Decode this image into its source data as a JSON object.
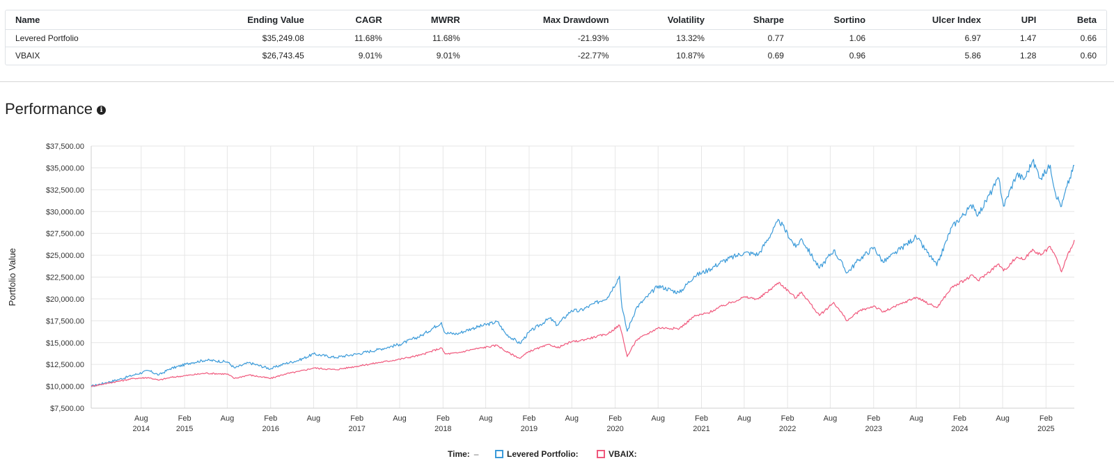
{
  "stats_table": {
    "columns": [
      "Name",
      "Ending Value",
      "CAGR",
      "MWRR",
      "Max Drawdown",
      "Volatility",
      "Sharpe",
      "Sortino",
      "Ulcer Index",
      "UPI",
      "Beta"
    ],
    "rows": [
      [
        "Levered Portfolio",
        "$35,249.08",
        "11.68%",
        "11.68%",
        "-21.93%",
        "13.32%",
        "0.77",
        "1.06",
        "6.97",
        "1.47",
        "0.66"
      ],
      [
        "VBAIX",
        "$26,743.45",
        "9.01%",
        "9.01%",
        "-22.77%",
        "10.87%",
        "0.69",
        "0.96",
        "5.86",
        "1.28",
        "0.60"
      ]
    ]
  },
  "section": {
    "title": "Performance",
    "info_icon": "info-circle-icon"
  },
  "legend": {
    "time_label": "Time:",
    "time_value": "–",
    "items": [
      {
        "label": "Levered Portfolio:",
        "color": "#3a9ad9"
      },
      {
        "label": "VBAIX:",
        "color": "#f0587c"
      }
    ]
  },
  "chart_data": {
    "type": "line",
    "ylabel": "Portfolio Value",
    "ylim": [
      7500,
      37500
    ],
    "yticks": [
      "$7,500.00",
      "$10,000.00",
      "$12,500.00",
      "$15,000.00",
      "$17,500.00",
      "$20,000.00",
      "$22,500.00",
      "$25,000.00",
      "$27,500.00",
      "$30,000.00",
      "$32,500.00",
      "$35,000.00",
      "$37,500.00"
    ],
    "xlim": [
      "2014-01-01",
      "2025-06-01"
    ],
    "xticks": [
      {
        "date": "2014-08-01",
        "line1": "Aug",
        "line2": "2014"
      },
      {
        "date": "2015-02-01",
        "line1": "Feb",
        "line2": "2015"
      },
      {
        "date": "2015-08-01",
        "line1": "Aug",
        "line2": ""
      },
      {
        "date": "2016-02-01",
        "line1": "Feb",
        "line2": "2016"
      },
      {
        "date": "2016-08-01",
        "line1": "Aug",
        "line2": ""
      },
      {
        "date": "2017-02-01",
        "line1": "Feb",
        "line2": "2017"
      },
      {
        "date": "2017-08-01",
        "line1": "Aug",
        "line2": ""
      },
      {
        "date": "2018-02-01",
        "line1": "Feb",
        "line2": "2018"
      },
      {
        "date": "2018-08-01",
        "line1": "Aug",
        "line2": ""
      },
      {
        "date": "2019-02-01",
        "line1": "Feb",
        "line2": "2019"
      },
      {
        "date": "2019-08-01",
        "line1": "Aug",
        "line2": ""
      },
      {
        "date": "2020-02-01",
        "line1": "Feb",
        "line2": "2020"
      },
      {
        "date": "2020-08-01",
        "line1": "Aug",
        "line2": ""
      },
      {
        "date": "2021-02-01",
        "line1": "Feb",
        "line2": "2021"
      },
      {
        "date": "2021-08-01",
        "line1": "Aug",
        "line2": ""
      },
      {
        "date": "2022-02-01",
        "line1": "Feb",
        "line2": "2022"
      },
      {
        "date": "2022-08-01",
        "line1": "Aug",
        "line2": ""
      },
      {
        "date": "2023-02-01",
        "line1": "Feb",
        "line2": "2023"
      },
      {
        "date": "2023-08-01",
        "line1": "Aug",
        "line2": ""
      },
      {
        "date": "2024-02-01",
        "line1": "Feb",
        "line2": "2024"
      },
      {
        "date": "2024-08-01",
        "line1": "Aug",
        "line2": ""
      },
      {
        "date": "2025-02-01",
        "line1": "Feb",
        "line2": "2025"
      }
    ],
    "series": [
      {
        "name": "Levered Portfolio",
        "color": "#3a9ad9",
        "points": [
          [
            "2014-01-01",
            10000
          ],
          [
            "2014-03-01",
            10400
          ],
          [
            "2014-05-01",
            10800
          ],
          [
            "2014-07-01",
            11300
          ],
          [
            "2014-09-01",
            11800
          ],
          [
            "2014-10-15",
            11300
          ],
          [
            "2014-12-01",
            12000
          ],
          [
            "2015-03-01",
            12700
          ],
          [
            "2015-05-01",
            13000
          ],
          [
            "2015-08-01",
            12800
          ],
          [
            "2015-09-01",
            12100
          ],
          [
            "2015-11-01",
            12700
          ],
          [
            "2016-02-01",
            12000
          ],
          [
            "2016-04-01",
            12600
          ],
          [
            "2016-06-01",
            13000
          ],
          [
            "2016-08-01",
            13700
          ],
          [
            "2016-11-01",
            13300
          ],
          [
            "2017-02-01",
            13700
          ],
          [
            "2017-05-01",
            14200
          ],
          [
            "2017-08-01",
            14800
          ],
          [
            "2017-11-01",
            15800
          ],
          [
            "2018-01-25",
            17300
          ],
          [
            "2018-02-10",
            16100
          ],
          [
            "2018-04-01",
            16000
          ],
          [
            "2018-06-01",
            16600
          ],
          [
            "2018-09-20",
            17400
          ],
          [
            "2018-10-25",
            16000
          ],
          [
            "2018-12-24",
            14900
          ],
          [
            "2019-02-01",
            16200
          ],
          [
            "2019-04-30",
            17800
          ],
          [
            "2019-05-31",
            17000
          ],
          [
            "2019-07-31",
            18700
          ],
          [
            "2019-09-01",
            18600
          ],
          [
            "2019-12-31",
            20200
          ],
          [
            "2020-02-19",
            22600
          ],
          [
            "2020-03-01",
            19000
          ],
          [
            "2020-03-23",
            16300
          ],
          [
            "2020-05-01",
            19000
          ],
          [
            "2020-08-01",
            21500
          ],
          [
            "2020-10-30",
            20700
          ],
          [
            "2020-12-31",
            22600
          ],
          [
            "2021-03-01",
            23300
          ],
          [
            "2021-05-01",
            24300
          ],
          [
            "2021-08-01",
            25300
          ],
          [
            "2021-10-01",
            25100
          ],
          [
            "2021-12-27",
            29000
          ],
          [
            "2022-03-08",
            25900
          ],
          [
            "2022-04-01",
            26900
          ],
          [
            "2022-06-16",
            23500
          ],
          [
            "2022-08-16",
            25600
          ],
          [
            "2022-10-12",
            23000
          ],
          [
            "2022-12-01",
            24500
          ],
          [
            "2023-02-02",
            25900
          ],
          [
            "2023-03-13",
            24200
          ],
          [
            "2023-05-01",
            25200
          ],
          [
            "2023-07-31",
            27100
          ],
          [
            "2023-10-27",
            23800
          ],
          [
            "2023-12-29",
            28200
          ],
          [
            "2024-03-28",
            30800
          ],
          [
            "2024-04-19",
            29600
          ],
          [
            "2024-07-16",
            33800
          ],
          [
            "2024-08-05",
            30600
          ],
          [
            "2024-09-30",
            34300
          ],
          [
            "2024-11-01",
            33700
          ],
          [
            "2024-12-06",
            35800
          ],
          [
            "2025-01-10",
            33800
          ],
          [
            "2025-02-19",
            35300
          ],
          [
            "2025-03-13",
            32100
          ],
          [
            "2025-04-08",
            30600
          ],
          [
            "2025-05-01",
            32900
          ],
          [
            "2025-06-01",
            35250
          ]
        ]
      },
      {
        "name": "VBAIX",
        "color": "#f0587c",
        "points": [
          [
            "2014-01-01",
            10000
          ],
          [
            "2014-03-01",
            10300
          ],
          [
            "2014-05-01",
            10600
          ],
          [
            "2014-07-01",
            10900
          ],
          [
            "2014-09-01",
            11000
          ],
          [
            "2014-10-15",
            10700
          ],
          [
            "2014-12-01",
            11000
          ],
          [
            "2015-03-01",
            11300
          ],
          [
            "2015-05-01",
            11500
          ],
          [
            "2015-08-01",
            11400
          ],
          [
            "2015-09-01",
            10900
          ],
          [
            "2015-11-01",
            11300
          ],
          [
            "2016-02-01",
            10900
          ],
          [
            "2016-04-01",
            11400
          ],
          [
            "2016-06-01",
            11700
          ],
          [
            "2016-08-01",
            12100
          ],
          [
            "2016-11-01",
            11900
          ],
          [
            "2017-02-01",
            12300
          ],
          [
            "2017-05-01",
            12700
          ],
          [
            "2017-08-01",
            13100
          ],
          [
            "2017-11-01",
            13600
          ],
          [
            "2018-01-25",
            14400
          ],
          [
            "2018-02-10",
            13700
          ],
          [
            "2018-04-01",
            13800
          ],
          [
            "2018-06-01",
            14200
          ],
          [
            "2018-09-20",
            14700
          ],
          [
            "2018-10-25",
            14000
          ],
          [
            "2018-12-24",
            13200
          ],
          [
            "2019-02-01",
            14000
          ],
          [
            "2019-04-30",
            14800
          ],
          [
            "2019-05-31",
            14400
          ],
          [
            "2019-07-31",
            15100
          ],
          [
            "2019-09-01",
            15200
          ],
          [
            "2019-12-31",
            16000
          ],
          [
            "2020-02-19",
            17000
          ],
          [
            "2020-03-01",
            16000
          ],
          [
            "2020-03-23",
            13400
          ],
          [
            "2020-05-01",
            15300
          ],
          [
            "2020-08-01",
            16700
          ],
          [
            "2020-10-30",
            16600
          ],
          [
            "2020-12-31",
            18000
          ],
          [
            "2021-03-01",
            18400
          ],
          [
            "2021-05-01",
            19200
          ],
          [
            "2021-08-01",
            20200
          ],
          [
            "2021-10-01",
            20000
          ],
          [
            "2021-12-27",
            21900
          ],
          [
            "2022-03-08",
            20100
          ],
          [
            "2022-04-01",
            20800
          ],
          [
            "2022-06-16",
            18100
          ],
          [
            "2022-08-16",
            19600
          ],
          [
            "2022-10-12",
            17500
          ],
          [
            "2022-12-01",
            18600
          ],
          [
            "2023-02-02",
            19200
          ],
          [
            "2023-03-13",
            18500
          ],
          [
            "2023-05-01",
            19100
          ],
          [
            "2023-07-31",
            20200
          ],
          [
            "2023-10-27",
            19000
          ],
          [
            "2023-12-29",
            21300
          ],
          [
            "2024-03-28",
            22700
          ],
          [
            "2024-04-19",
            22100
          ],
          [
            "2024-07-16",
            24000
          ],
          [
            "2024-08-05",
            23200
          ],
          [
            "2024-09-30",
            24800
          ],
          [
            "2024-11-01",
            24500
          ],
          [
            "2024-12-06",
            25700
          ],
          [
            "2025-01-10",
            25000
          ],
          [
            "2025-02-19",
            26000
          ],
          [
            "2025-03-13",
            24900
          ],
          [
            "2025-04-08",
            23100
          ],
          [
            "2025-05-01",
            24800
          ],
          [
            "2025-06-01",
            26743
          ]
        ]
      }
    ],
    "grid": true
  }
}
